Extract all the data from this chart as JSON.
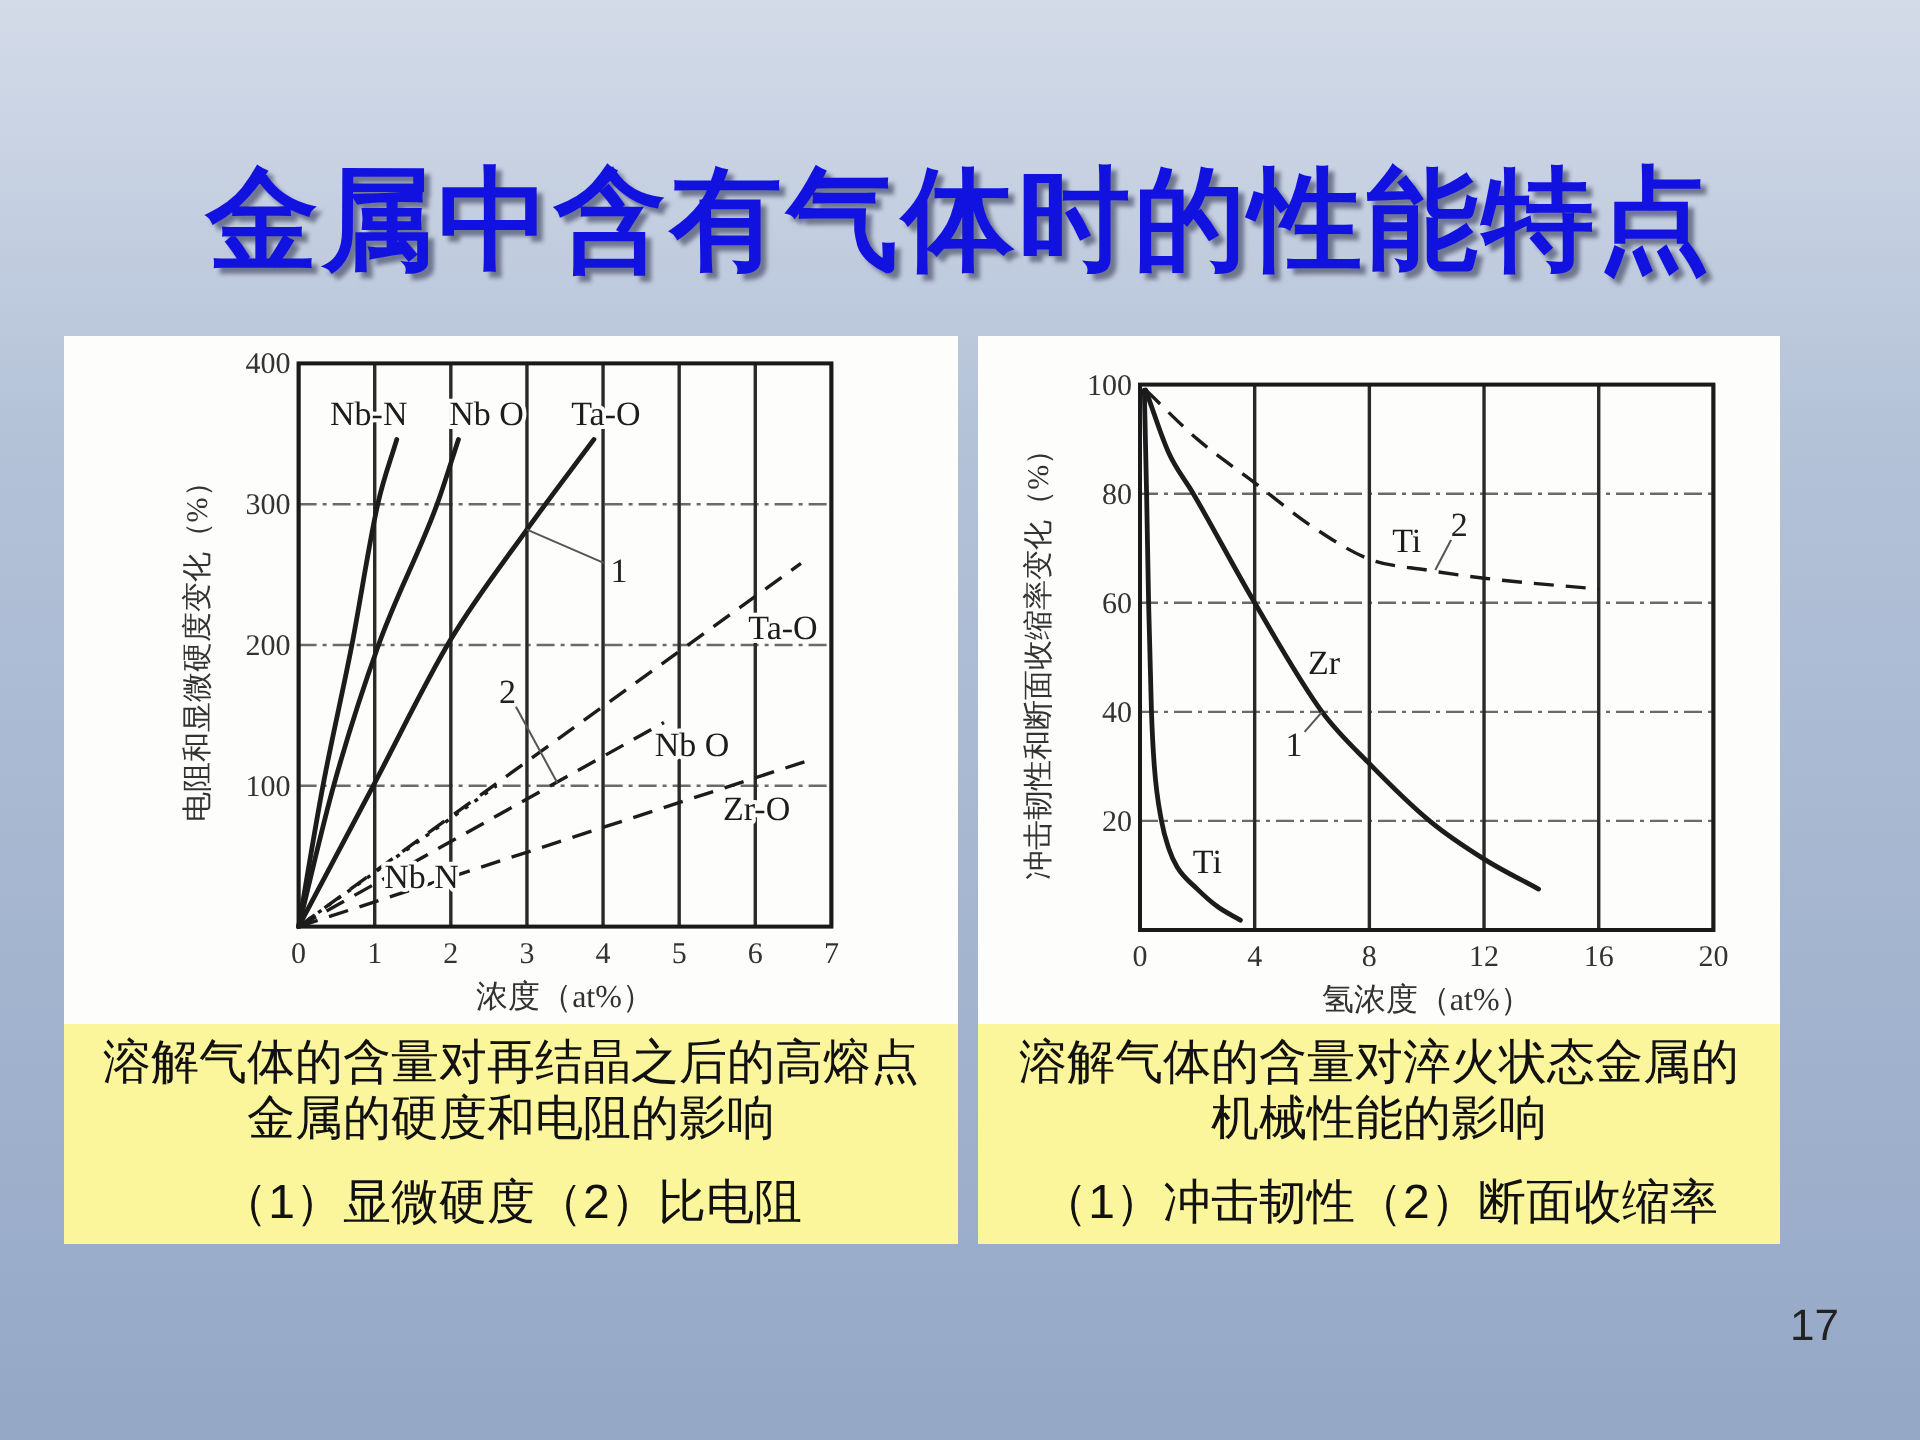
{
  "chart_data": [
    {
      "type": "line",
      "title": "金属中含有气体时的性能特点",
      "xlabel": "浓度（at%）",
      "ylabel": "电阻和显微硬度变化（%）",
      "xlim": [
        0,
        7
      ],
      "xticks": [
        0,
        1,
        2,
        3,
        4,
        5,
        6,
        7
      ],
      "ylim": [
        0,
        400
      ],
      "yticks": [
        {
          "value": 0,
          "label": null
        },
        100,
        200,
        300,
        400
      ],
      "grid": true,
      "series": [
        {
          "name": "Nb-N",
          "color": "#1c1c1c",
          "line_style": "solid",
          "x": [
            0,
            0.32,
            0.7,
            1.04,
            1.29
          ],
          "values": [
            0,
            100,
            200,
            300,
            346
          ]
        },
        {
          "name": "Nb O",
          "color": "#1c1c1c",
          "line_style": "solid",
          "x": [
            0,
            0.46,
            1.05,
            1.82,
            2.1
          ],
          "values": [
            0,
            100,
            200,
            300,
            346
          ]
        },
        {
          "name": "Ta-O",
          "color": "#1c1c1c",
          "line_style": "solid",
          "x": [
            0,
            0.98,
            2,
            3,
            3.88
          ],
          "values": [
            0,
            100,
            204,
            282,
            346
          ]
        },
        {
          "name": "Ta-O",
          "color": "#1c1c1c",
          "line_style": "dashed",
          "x": [
            0,
            6.6
          ],
          "values": [
            0,
            258
          ]
        },
        {
          "name": "Nb O",
          "color": "#1c1c1c",
          "line_style": "dashed",
          "x": [
            0,
            4.8
          ],
          "values": [
            0,
            145
          ]
        },
        {
          "name": "Zr-O",
          "color": "#1c1c1c",
          "line_style": "dashed",
          "x": [
            0,
            6.7
          ],
          "values": [
            0,
            118
          ]
        },
        {
          "name": "Nb N",
          "color": "#1c1c1c",
          "line_style": "dotted",
          "x": [
            0,
            1.3,
            2.6
          ],
          "values": [
            0,
            50,
            100
          ]
        }
      ],
      "annotations": [
        {
          "text": "1",
          "x": 3,
          "y": 282
        },
        {
          "text": "2",
          "x": 3.4,
          "y": 102
        },
        "溶解气体的含量对再结晶之后的高熔点金属的硬度和电阻的影响",
        "（1）显微硬度（2）比电阻"
      ]
    },
    {
      "type": "line",
      "xlabel": "氢浓度（at%）",
      "ylabel": "冲击韧性和断面收缩率变化（%）",
      "xlim": [
        0,
        20
      ],
      "xticks": [
        0,
        4,
        8,
        12,
        16,
        20
      ],
      "ylim": [
        0,
        100
      ],
      "yticks": [
        {
          "value": 0,
          "label": null
        },
        20,
        40,
        60,
        80,
        100
      ],
      "grid": true,
      "series": [
        {
          "name": "Ti",
          "color": "#1c1c1c",
          "line_style": "solid",
          "x": [
            0.15,
            0.23,
            0.3,
            0.4,
            0.5,
            0.75,
            1.0,
            1.3,
            2.0,
            2.7,
            3.5
          ],
          "values": [
            99,
            80,
            60,
            40,
            30,
            20,
            15,
            11.5,
            7.5,
            4.3,
            1.8
          ]
        },
        {
          "name": "Zr",
          "color": "#1c1c1c",
          "line_style": "solid",
          "x": [
            0.2,
            1,
            1.86,
            4,
            6.35,
            8,
            10.1,
            12,
            13.9
          ],
          "values": [
            99,
            87.5,
            80,
            60,
            40,
            30.5,
            20,
            13,
            7.5
          ]
        },
        {
          "name": "Ti",
          "color": "#1c1c1c",
          "line_style": "dashed",
          "x": [
            0.2,
            2,
            4,
            6,
            8,
            10,
            12,
            16
          ],
          "values": [
            99,
            90,
            82,
            74,
            68,
            66,
            64.5,
            62.5
          ]
        }
      ],
      "annotations": [
        {
          "text": "1",
          "x": 6.35,
          "y": 40
        },
        {
          "text": "2",
          "x": 10.3,
          "y": 66
        },
        "溶解气体的含量对淬火状态金属的机械性能的影响",
        "（1）冲击韧性（2）断面收缩率",
        "17"
      ]
    }
  ]
}
